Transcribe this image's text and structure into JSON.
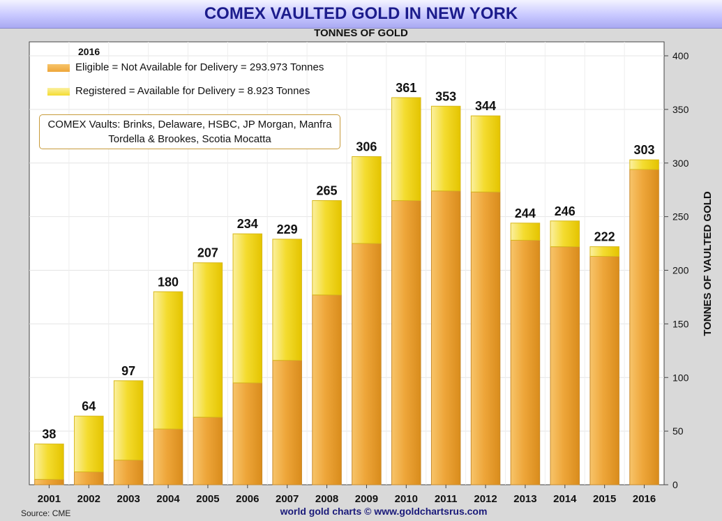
{
  "chart_data": {
    "type": "bar",
    "stacked": true,
    "title": "COMEX VAULTED GOLD IN NEW YORK",
    "subtitle": "TONNES OF GOLD",
    "ylabel": "TONNES OF VAULTED GOLD",
    "xlabel": "",
    "ylim": [
      0,
      400
    ],
    "yticks": [
      0,
      50,
      100,
      150,
      200,
      250,
      300,
      350,
      400
    ],
    "y_axis_position": "right",
    "categories": [
      "2001",
      "2002",
      "2003",
      "2004",
      "2005",
      "2006",
      "2007",
      "2008",
      "2009",
      "2010",
      "2011",
      "2012",
      "2013",
      "2014",
      "2015",
      "2016"
    ],
    "series": [
      {
        "name": "Eligible = Not Available for Delivery = 293.973 Tonnes",
        "color": "#f0a830",
        "values": [
          5,
          12,
          23,
          52,
          63,
          95,
          116,
          177,
          225,
          265,
          274,
          273,
          228,
          222,
          213,
          294
        ]
      },
      {
        "name": "Registered = Available for Delivery = 8.923 Tonnes",
        "color": "#f5d800",
        "values": [
          33,
          52,
          74,
          128,
          144,
          139,
          113,
          88,
          81,
          96,
          79,
          71,
          16,
          24,
          9,
          9
        ]
      }
    ],
    "totals": [
      "38",
      "64",
      "97",
      "180",
      "207",
      "234",
      "229",
      "265",
      "306",
      "361",
      "353",
      "344",
      "244",
      "246",
      "222",
      "303"
    ],
    "legend": {
      "year": "2016",
      "placement": "top-left",
      "note": "COMEX Vaults: Brinks, Delaware, HSBC, JP Morgan, Manfra Tordella & Brookes, Scotia Mocatta"
    },
    "grid": true
  },
  "footer": {
    "source": "Source: CME",
    "credit": "world gold charts © www.goldchartsrus.com"
  }
}
